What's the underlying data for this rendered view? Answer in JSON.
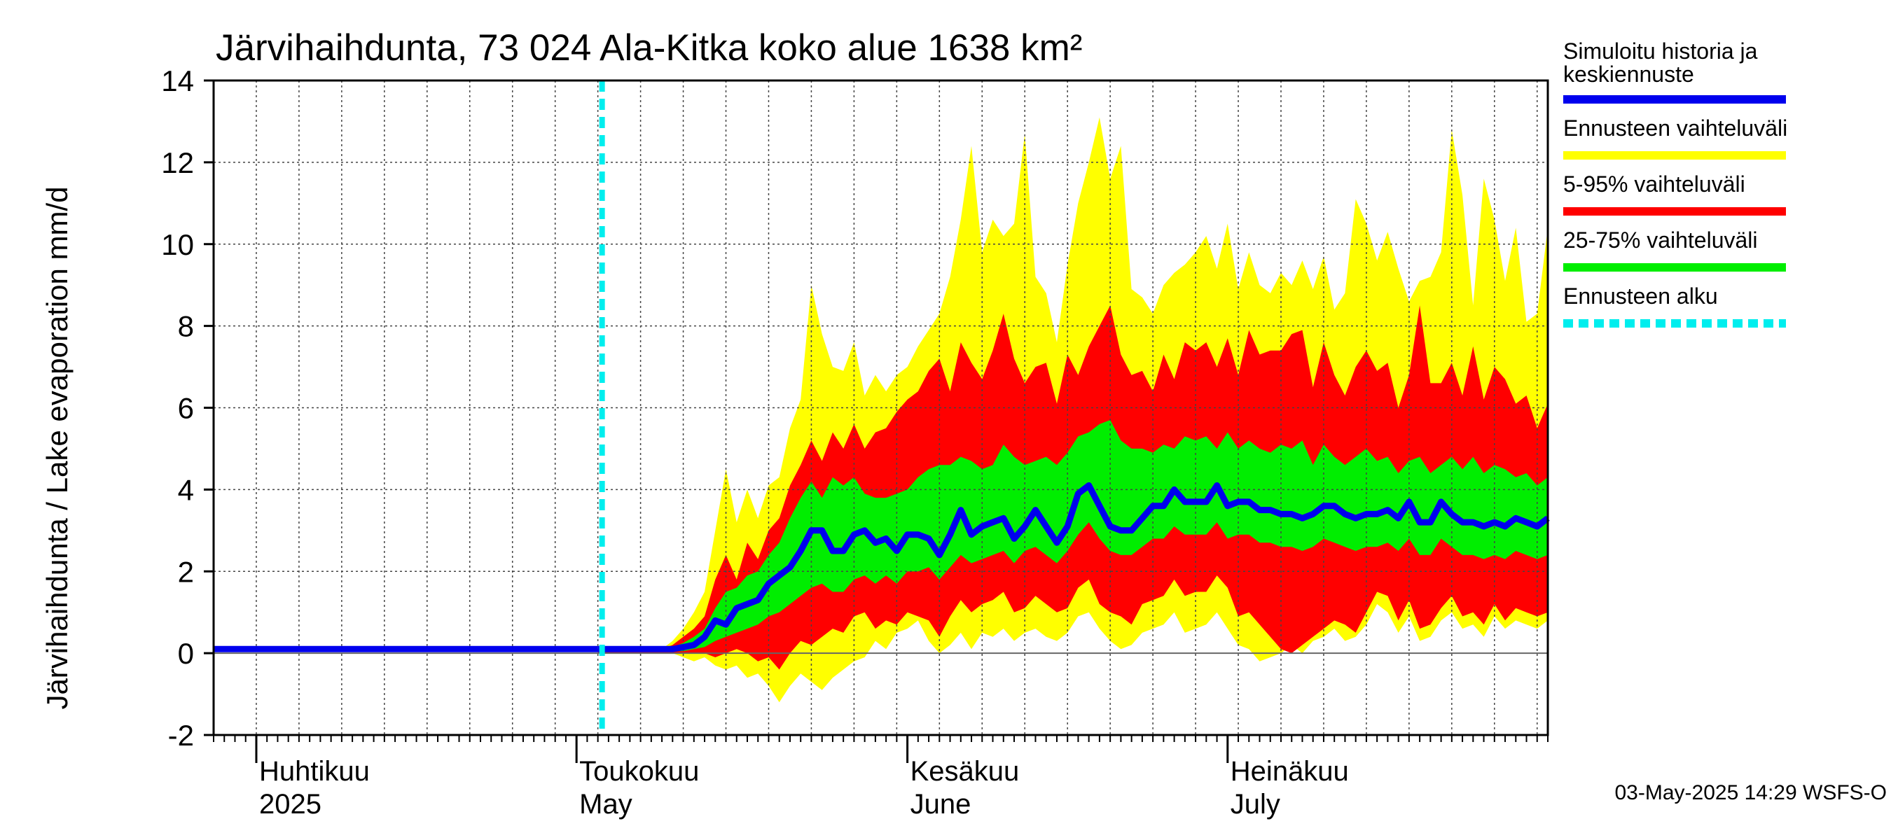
{
  "chart_data": {
    "type": "area",
    "title": "Järvihaihdunta, 73 024 Ala-Kitka koko alue 1638 km²",
    "ylabel": "Järvihaihdunta / Lake evaporation   mm/d",
    "ylim": [
      -2,
      14
    ],
    "yticks": [
      -2,
      0,
      2,
      4,
      6,
      8,
      10,
      12,
      14
    ],
    "xrange": [
      "2025-03-28",
      "2025-07-31"
    ],
    "forecast_start": "2025-05-03",
    "months": [
      {
        "line1": "Huhtikuu",
        "line2": "2025",
        "start": "2025-04-01"
      },
      {
        "line1": "Toukokuu",
        "line2": "May",
        "start": "2025-05-01"
      },
      {
        "line1": "Kesäkuu",
        "line2": "June",
        "start": "2025-06-01"
      },
      {
        "line1": "Heinäkuu",
        "line2": "July",
        "start": "2025-07-01"
      }
    ],
    "legend": [
      {
        "label_lines": [
          "Simuloitu historia ja",
          "keskiennuste"
        ],
        "color": "#0000ee",
        "style": "solid"
      },
      {
        "label_lines": [
          "Ennusteen vaihteluväli"
        ],
        "color": "#ffff00",
        "style": "solid"
      },
      {
        "label_lines": [
          "5-95% vaihteluväli"
        ],
        "color": "#ff0000",
        "style": "solid"
      },
      {
        "label_lines": [
          "25-75% vaihteluväli"
        ],
        "color": "#00ee00",
        "style": "solid"
      },
      {
        "label_lines": [
          "Ennusteen alku"
        ],
        "color": "#00eeee",
        "style": "dashed"
      }
    ],
    "series": {
      "history": {
        "x": [
          "2025-03-28",
          "2025-05-03"
        ],
        "values": [
          0.1,
          0.1
        ]
      },
      "forecast": {
        "x": [
          "2025-05-03",
          "2025-05-04",
          "2025-05-05",
          "2025-05-06",
          "2025-05-07",
          "2025-05-08",
          "2025-05-09",
          "2025-05-10",
          "2025-05-11",
          "2025-05-12",
          "2025-05-13",
          "2025-05-14",
          "2025-05-15",
          "2025-05-16",
          "2025-05-17",
          "2025-05-18",
          "2025-05-19",
          "2025-05-20",
          "2025-05-21",
          "2025-05-22",
          "2025-05-23",
          "2025-05-24",
          "2025-05-25",
          "2025-05-26",
          "2025-05-27",
          "2025-05-28",
          "2025-05-29",
          "2025-05-30",
          "2025-05-31",
          "2025-06-01",
          "2025-06-02",
          "2025-06-03",
          "2025-06-04",
          "2025-06-05",
          "2025-06-06",
          "2025-06-07",
          "2025-06-08",
          "2025-06-09",
          "2025-06-10",
          "2025-06-11",
          "2025-06-12",
          "2025-06-13",
          "2025-06-14",
          "2025-06-15",
          "2025-06-16",
          "2025-06-17",
          "2025-06-18",
          "2025-06-19",
          "2025-06-20",
          "2025-06-21",
          "2025-06-22",
          "2025-06-23",
          "2025-06-24",
          "2025-06-25",
          "2025-06-26",
          "2025-06-27",
          "2025-06-28",
          "2025-06-29",
          "2025-06-30",
          "2025-07-01",
          "2025-07-02",
          "2025-07-03",
          "2025-07-04",
          "2025-07-05",
          "2025-07-06",
          "2025-07-07",
          "2025-07-08",
          "2025-07-09",
          "2025-07-10",
          "2025-07-11",
          "2025-07-12",
          "2025-07-13",
          "2025-07-14",
          "2025-07-15",
          "2025-07-16",
          "2025-07-17",
          "2025-07-18",
          "2025-07-19",
          "2025-07-20",
          "2025-07-21",
          "2025-07-22",
          "2025-07-23",
          "2025-07-24",
          "2025-07-25",
          "2025-07-26",
          "2025-07-27",
          "2025-07-28",
          "2025-07-29",
          "2025-07-30",
          "2025-07-31"
        ],
        "range_max": [
          0.1,
          0.1,
          0.1,
          0.1,
          0.1,
          0.1,
          0.1,
          0.3,
          0.6,
          1.0,
          1.5,
          3.0,
          4.5,
          3.2,
          4.0,
          3.3,
          4.1,
          4.3,
          5.5,
          6.2,
          9.0,
          7.8,
          7.0,
          6.9,
          7.6,
          6.3,
          6.8,
          6.4,
          6.8,
          7.0,
          7.5,
          7.9,
          8.3,
          9.2,
          10.6,
          12.4,
          9.8,
          10.6,
          10.2,
          10.5,
          12.7,
          9.2,
          8.8,
          7.6,
          9.5,
          11.0,
          12.0,
          13.1,
          11.6,
          12.4,
          8.9,
          8.7,
          8.3,
          9.0,
          9.3,
          9.5,
          9.8,
          10.2,
          9.4,
          10.5,
          8.9,
          9.8,
          9.0,
          8.8,
          9.3,
          9.0,
          9.6,
          8.9,
          9.7,
          8.4,
          8.8,
          11.1,
          10.5,
          9.6,
          10.3,
          9.4,
          8.6,
          9.1,
          9.2,
          9.8,
          12.8,
          11.2,
          8.5,
          11.6,
          10.6,
          9.1,
          10.4,
          8.1,
          8.3,
          10.4
        ],
        "p95": [
          0.1,
          0.1,
          0.1,
          0.1,
          0.1,
          0.1,
          0.1,
          0.2,
          0.4,
          0.6,
          0.9,
          1.8,
          2.4,
          1.8,
          2.7,
          2.3,
          3.0,
          3.3,
          4.1,
          4.6,
          5.2,
          4.7,
          5.4,
          5.0,
          5.6,
          5.0,
          5.4,
          5.5,
          5.9,
          6.2,
          6.4,
          6.9,
          7.2,
          6.4,
          7.6,
          7.1,
          6.7,
          7.4,
          8.3,
          7.2,
          6.6,
          7.0,
          7.1,
          6.1,
          7.3,
          6.8,
          7.5,
          8.0,
          8.5,
          7.3,
          6.8,
          6.9,
          6.4,
          7.3,
          6.7,
          7.6,
          7.4,
          7.6,
          7.0,
          7.7,
          6.8,
          7.9,
          7.3,
          7.4,
          7.4,
          7.8,
          7.9,
          6.5,
          7.6,
          6.8,
          6.3,
          7.0,
          7.4,
          6.9,
          7.1,
          6.0,
          6.8,
          8.5,
          6.6,
          6.6,
          7.1,
          6.3,
          7.5,
          6.2,
          7.0,
          6.7,
          6.1,
          6.3,
          5.5,
          6.1
        ],
        "p75": [
          0.1,
          0.1,
          0.1,
          0.1,
          0.1,
          0.1,
          0.1,
          0.15,
          0.25,
          0.4,
          0.6,
          1.1,
          1.5,
          1.6,
          1.9,
          2.0,
          2.4,
          2.7,
          3.3,
          3.8,
          4.2,
          3.8,
          4.3,
          4.1,
          4.3,
          3.9,
          3.8,
          3.8,
          3.9,
          4.0,
          4.3,
          4.5,
          4.6,
          4.6,
          4.8,
          4.7,
          4.5,
          4.6,
          5.1,
          4.8,
          4.6,
          4.7,
          4.8,
          4.6,
          4.9,
          5.3,
          5.4,
          5.6,
          5.7,
          5.2,
          5.0,
          5.0,
          4.9,
          5.1,
          5.0,
          5.3,
          5.2,
          5.3,
          5.0,
          5.4,
          5.0,
          5.2,
          5.0,
          4.9,
          5.1,
          5.0,
          5.2,
          4.6,
          5.1,
          4.8,
          4.6,
          4.8,
          5.0,
          4.7,
          4.8,
          4.4,
          4.7,
          4.8,
          4.4,
          4.6,
          4.8,
          4.5,
          4.8,
          4.4,
          4.6,
          4.5,
          4.3,
          4.4,
          4.1,
          4.3
        ],
        "mean": [
          0.1,
          0.1,
          0.1,
          0.1,
          0.1,
          0.1,
          0.1,
          0.1,
          0.15,
          0.2,
          0.4,
          0.8,
          0.7,
          1.1,
          1.2,
          1.3,
          1.7,
          1.9,
          2.1,
          2.5,
          3.0,
          3.0,
          2.5,
          2.5,
          2.9,
          3.0,
          2.7,
          2.8,
          2.5,
          2.9,
          2.9,
          2.8,
          2.4,
          2.9,
          3.5,
          2.9,
          3.1,
          3.2,
          3.3,
          2.8,
          3.1,
          3.5,
          3.1,
          2.7,
          3.1,
          3.9,
          4.1,
          3.6,
          3.1,
          3.0,
          3.0,
          3.3,
          3.6,
          3.6,
          4.0,
          3.7,
          3.7,
          3.7,
          4.1,
          3.6,
          3.7,
          3.7,
          3.5,
          3.5,
          3.4,
          3.4,
          3.3,
          3.4,
          3.6,
          3.6,
          3.4,
          3.3,
          3.4,
          3.4,
          3.5,
          3.3,
          3.7,
          3.2,
          3.2,
          3.7,
          3.4,
          3.2,
          3.2,
          3.1,
          3.2,
          3.1,
          3.3,
          3.2,
          3.1,
          3.3
        ],
        "p25": [
          0.05,
          0.05,
          0.05,
          0.05,
          0.05,
          0.05,
          0.05,
          0.05,
          0.05,
          0.1,
          0.15,
          0.3,
          0.4,
          0.5,
          0.6,
          0.7,
          0.9,
          1.0,
          1.2,
          1.4,
          1.6,
          1.7,
          1.5,
          1.5,
          1.8,
          1.9,
          1.7,
          1.9,
          1.7,
          2.0,
          2.0,
          2.1,
          1.8,
          2.1,
          2.4,
          2.2,
          2.3,
          2.4,
          2.5,
          2.2,
          2.5,
          2.6,
          2.4,
          2.2,
          2.5,
          2.9,
          3.2,
          2.8,
          2.5,
          2.4,
          2.4,
          2.6,
          2.8,
          2.8,
          3.1,
          2.9,
          2.9,
          2.9,
          3.2,
          2.8,
          2.9,
          2.9,
          2.7,
          2.7,
          2.6,
          2.6,
          2.5,
          2.6,
          2.8,
          2.7,
          2.6,
          2.5,
          2.6,
          2.6,
          2.7,
          2.5,
          2.8,
          2.4,
          2.4,
          2.8,
          2.6,
          2.4,
          2.4,
          2.3,
          2.4,
          2.3,
          2.5,
          2.4,
          2.3,
          2.4
        ],
        "p5": [
          0.0,
          0.0,
          0.0,
          0.0,
          0.0,
          0.0,
          0.0,
          0.0,
          0.0,
          0.0,
          0.0,
          -0.1,
          0.0,
          0.1,
          0.0,
          -0.2,
          -0.1,
          -0.4,
          0.0,
          0.3,
          0.2,
          0.4,
          0.6,
          0.5,
          0.9,
          1.0,
          0.6,
          0.8,
          0.7,
          1.0,
          0.9,
          0.8,
          0.4,
          0.9,
          1.3,
          1.0,
          1.2,
          1.3,
          1.5,
          1.0,
          1.1,
          1.4,
          1.2,
          1.0,
          1.1,
          1.6,
          1.8,
          1.2,
          1.0,
          0.9,
          0.7,
          1.2,
          1.3,
          1.4,
          1.8,
          1.4,
          1.5,
          1.5,
          1.9,
          1.6,
          0.9,
          1.0,
          0.7,
          0.4,
          0.1,
          0.0,
          0.2,
          0.4,
          0.6,
          0.8,
          0.7,
          0.5,
          1.0,
          1.5,
          1.4,
          0.8,
          1.3,
          0.6,
          0.7,
          1.1,
          1.4,
          0.9,
          1.0,
          0.7,
          1.2,
          0.8,
          1.1,
          1.0,
          0.9,
          1.0
        ],
        "range_min": [
          0.0,
          0.0,
          0.0,
          0.0,
          0.0,
          0.0,
          0.0,
          0.0,
          -0.1,
          -0.2,
          -0.1,
          -0.3,
          -0.4,
          -0.3,
          -0.6,
          -0.5,
          -0.8,
          -1.2,
          -0.8,
          -0.5,
          -0.7,
          -0.9,
          -0.6,
          -0.4,
          -0.2,
          -0.1,
          0.3,
          0.1,
          0.5,
          0.6,
          0.8,
          0.3,
          0.0,
          0.2,
          0.5,
          0.1,
          0.5,
          0.4,
          0.6,
          0.3,
          0.5,
          0.6,
          0.4,
          0.3,
          0.5,
          0.9,
          1.0,
          0.6,
          0.3,
          0.1,
          0.2,
          0.5,
          0.6,
          0.7,
          1.0,
          0.5,
          0.6,
          0.7,
          1.0,
          0.6,
          0.2,
          0.1,
          -0.2,
          -0.1,
          0.0,
          0.2,
          0.0,
          0.3,
          0.4,
          0.6,
          0.3,
          0.4,
          0.7,
          1.2,
          1.0,
          0.5,
          0.9,
          0.3,
          0.4,
          0.8,
          1.0,
          0.6,
          0.7,
          0.4,
          0.9,
          0.6,
          0.8,
          0.7,
          0.6,
          0.8
        ]
      }
    }
  },
  "footer": {
    "timestamp": "03-May-2025 14:29 WSFS-O"
  }
}
